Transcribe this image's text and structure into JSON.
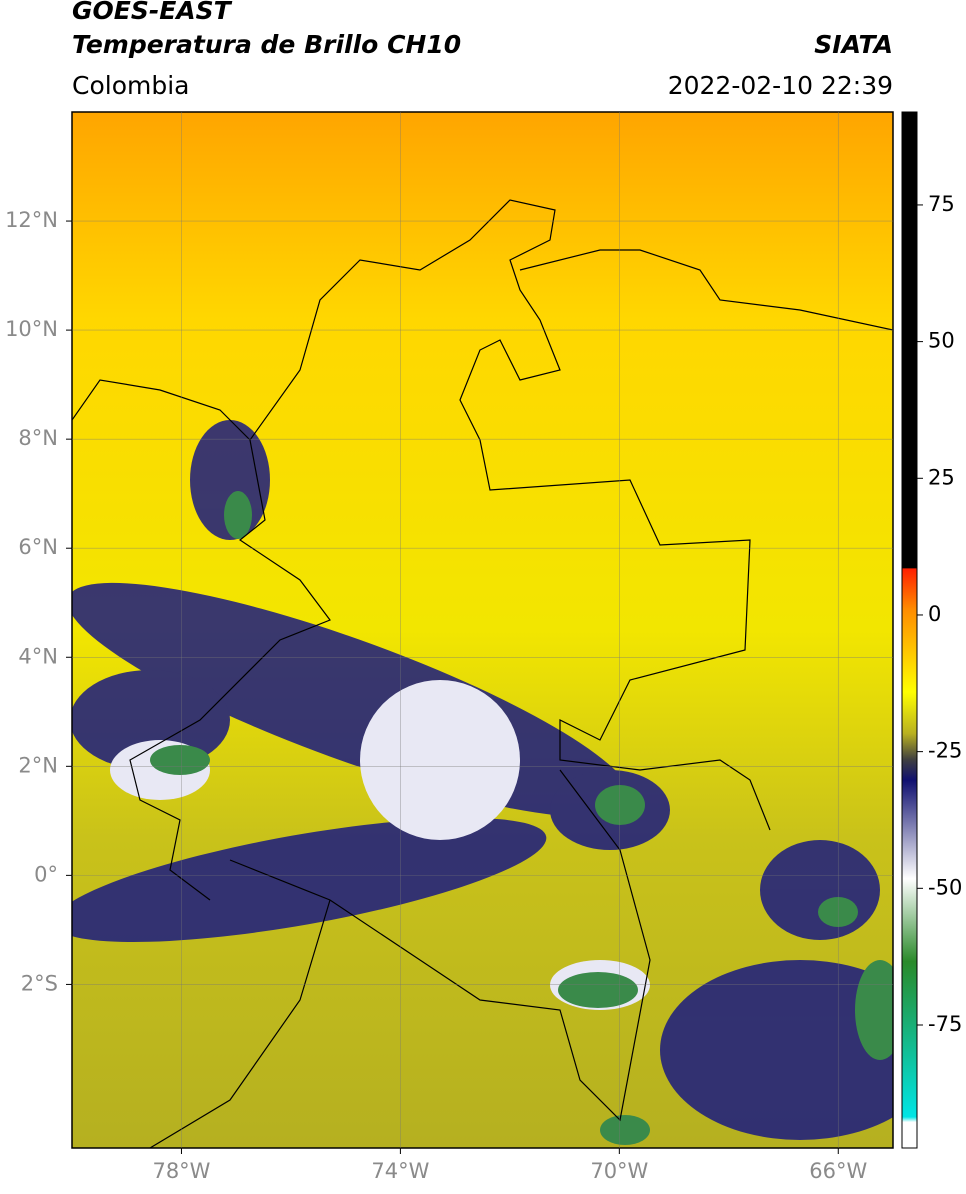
{
  "map": {
    "title": "GOES-EAST",
    "subtitle": "Temperatura de Brillo CH10",
    "source": "SIATA",
    "region": "Colombia",
    "datetime": "2022-02-10 22:39",
    "xlim": [
      -80,
      -65
    ],
    "ylim": [
      -5,
      14
    ],
    "xticks": [
      {
        "value": -78,
        "label": "78°W"
      },
      {
        "value": -74,
        "label": "74°W"
      },
      {
        "value": -70,
        "label": "70°W"
      },
      {
        "value": -66,
        "label": "66°W"
      }
    ],
    "yticks": [
      {
        "value": 12,
        "label": "12°N"
      },
      {
        "value": 10,
        "label": "10°N"
      },
      {
        "value": 8,
        "label": "8°N"
      },
      {
        "value": 6,
        "label": "6°N"
      },
      {
        "value": 4,
        "label": "4°N"
      },
      {
        "value": 2,
        "label": "2°N"
      },
      {
        "value": 0,
        "label": "0°"
      },
      {
        "value": -2,
        "label": "2°S"
      }
    ],
    "colorbar_lim": [
      -97.5,
      92
    ],
    "colorbar_ticks": [
      75,
      50,
      25,
      0,
      -25,
      -50,
      -75
    ]
  }
}
